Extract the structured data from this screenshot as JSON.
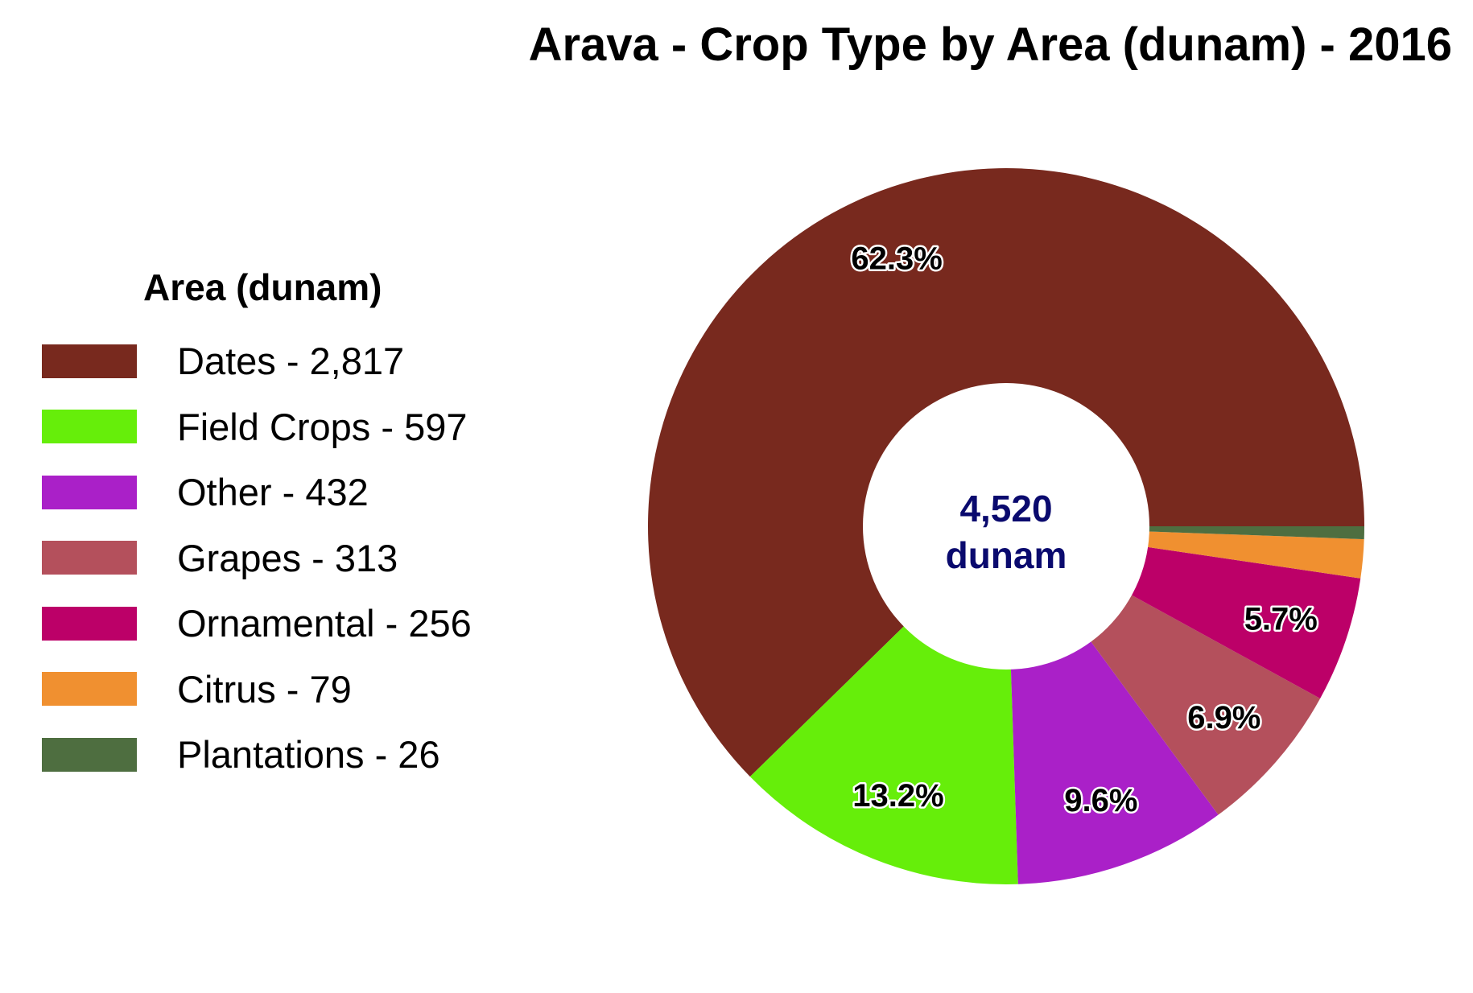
{
  "chart_data": {
    "type": "pie",
    "title": "Arava - Crop Type by Area (dunam) - 2016",
    "legend_title": "Area (dunam)",
    "legend_position": "left",
    "center_label": {
      "value": "4,520",
      "unit": "dunam"
    },
    "slices": [
      {
        "name": "Dates",
        "value": 2817,
        "legend": "Dates - 2,817",
        "percent_label": "62.3%",
        "color": "#78291e"
      },
      {
        "name": "Field Crops",
        "value": 597,
        "legend": "Field Crops - 597",
        "percent_label": "13.2%",
        "color": "#66ee0a"
      },
      {
        "name": "Other",
        "value": 432,
        "legend": "Other - 432",
        "percent_label": "9.6%",
        "color": "#aa20c8"
      },
      {
        "name": "Grapes",
        "value": 313,
        "legend": "Grapes - 313",
        "percent_label": "6.9%",
        "color": "#b4505c"
      },
      {
        "name": "Ornamental",
        "value": 256,
        "legend": "Ornamental - 256",
        "percent_label": "5.7%",
        "color": "#bc0068"
      },
      {
        "name": "Citrus",
        "value": 79,
        "legend": "Citrus - 79",
        "percent_label": "",
        "color": "#f09030"
      },
      {
        "name": "Plantations",
        "value": 26,
        "legend": "Plantations - 26",
        "percent_label": "",
        "color": "#4e6e40"
      }
    ]
  }
}
